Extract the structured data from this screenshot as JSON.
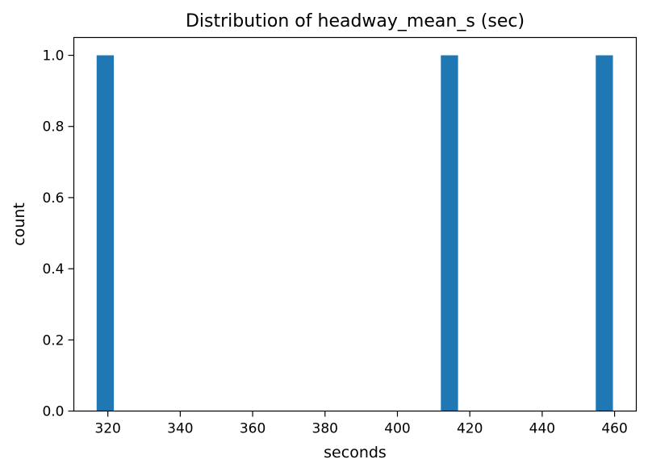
{
  "chart_data": {
    "type": "bar",
    "title": "Distribution of headway_mean_s (sec)",
    "xlabel": "seconds",
    "ylabel": "count",
    "xlim": [
      310.6,
      466.0
    ],
    "ylim": [
      0,
      1.05
    ],
    "x_ticks": [
      320,
      340,
      360,
      380,
      400,
      420,
      440,
      460
    ],
    "x_tick_labels": [
      "320",
      "340",
      "360",
      "380",
      "400",
      "420",
      "440",
      "460"
    ],
    "y_ticks": [
      0.0,
      0.2,
      0.4,
      0.6,
      0.8,
      1.0
    ],
    "y_tick_labels": [
      "0.0",
      "0.2",
      "0.4",
      "0.6",
      "0.8",
      "1.0"
    ],
    "bin_width": 4.75,
    "bars": [
      {
        "bin_start": 316.9,
        "bin_end": 321.65,
        "count": 1
      },
      {
        "bin_start": 412.0,
        "bin_end": 416.75,
        "count": 1
      },
      {
        "bin_start": 454.8,
        "bin_end": 459.55,
        "count": 1
      }
    ],
    "bar_color": "#1f77b4",
    "grid": false,
    "legend": "none"
  }
}
